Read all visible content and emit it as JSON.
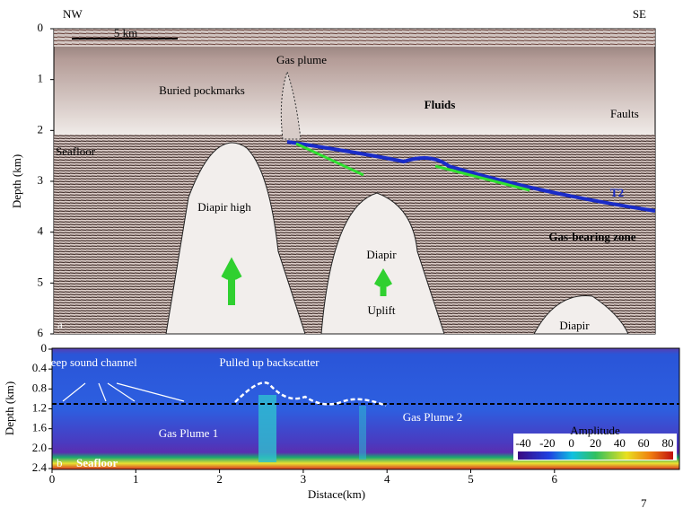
{
  "panel_a": {
    "label": "a",
    "left_direction": "NW",
    "right_direction": "SE",
    "scale_bar": "5 km",
    "y_axis_label": "Depth (km)",
    "y_ticks": [
      "0",
      "1",
      "2",
      "3",
      "4",
      "5",
      "6"
    ],
    "annotations": {
      "gas_plume": "Gas plume",
      "buried_pockmarks": "Buried pockmarks",
      "fluids": "Fluids",
      "faults": "Faults",
      "seafloor": "Seafloor",
      "diapir_high": "Diapir high",
      "diapir": "Diapir",
      "uplift": "Uplift",
      "gas_bearing_zone": "Gas-bearing zone",
      "diapir_small": "Diapir",
      "horizon": "T2"
    }
  },
  "panel_b": {
    "label": "b",
    "y_axis_label": "Depth (km)",
    "x_axis_label": "Distace(km)",
    "y_ticks": [
      "0",
      "0.4",
      "0.8",
      "1.2",
      "1.6",
      "2.0",
      "2.4"
    ],
    "x_ticks": [
      "0",
      "1",
      "2",
      "3",
      "4",
      "5",
      "6"
    ],
    "annotations": {
      "deep_sound_channel": "Deep sound channel",
      "pulled_up_backscatter": "Pulled up backscatter",
      "gas_plume_1": "Gas Plume 1",
      "gas_plume_2": "Gas Plume 2",
      "seafloor": "Seafloor"
    },
    "colorbar": {
      "title": "Amplitude",
      "ticks": [
        "-40",
        "-20",
        "0",
        "20",
        "40",
        "60",
        "80"
      ]
    }
  },
  "page_number": "7"
}
